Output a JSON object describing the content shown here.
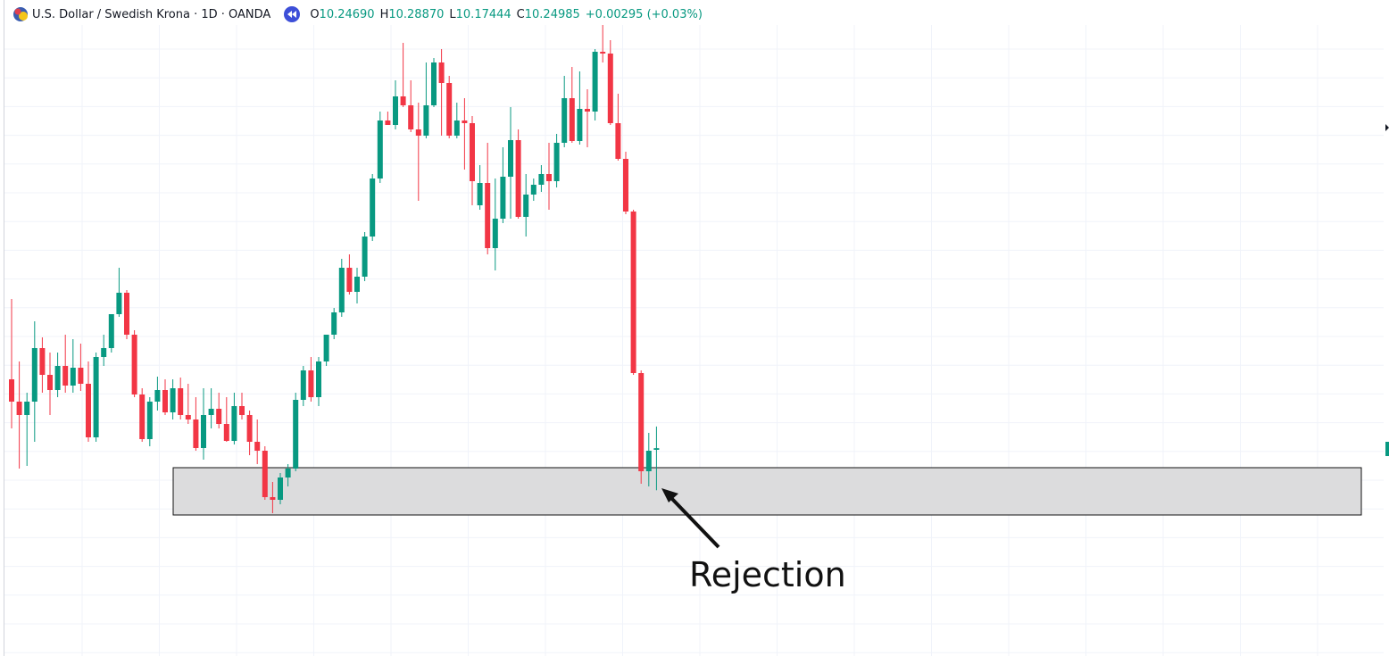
{
  "chart_data": {
    "type": "candlestick",
    "title": "U.S. Dollar / Swedish Krona · 1D · OANDA",
    "legend": [
      {
        "label": "O",
        "text": "10.24690"
      },
      {
        "label": "H",
        "text": "10.28870"
      },
      {
        "label": "L",
        "text": "10.17444"
      },
      {
        "label": "C",
        "text": "10.24985"
      }
    ],
    "change": "+0.00295 (+0.03%)",
    "annotation": "Rejection",
    "up_color": "#089981",
    "down_color": "#f23645",
    "ylim": [
      9.8773,
      11.0533
    ],
    "open": [
      10.3733,
      10.3333,
      10.3093,
      10.3333,
      10.4293,
      10.3813,
      10.3541,
      10.3973,
      10.3621,
      10.3941,
      10.3653,
      10.2693,
      10.4133,
      10.4293,
      10.4901,
      10.5285,
      10.4533,
      10.3461,
      10.2661,
      10.3333,
      10.3541,
      10.3141,
      10.3573,
      10.3093,
      10.3013,
      10.2501,
      10.3093,
      10.3205,
      10.2933,
      10.2629,
      10.3253,
      10.3093,
      10.2613,
      10.2453,
      10.1621,
      10.1573,
      10.1973,
      10.2133,
      10.3365,
      10.3893,
      10.3413,
      10.4053,
      10.4533,
      10.4933,
      10.5733,
      10.5301,
      10.5573,
      10.6293,
      10.7333,
      10.8373,
      10.8293,
      10.8805,
      10.8645,
      10.8213,
      10.8101,
      10.8645,
      10.9413,
      10.9045,
      10.8101,
      10.8373,
      10.8325,
      10.6853,
      10.7253,
      10.6085,
      10.6613,
      10.7365,
      10.8021,
      10.6645,
      10.7045,
      10.7221,
      10.7413,
      10.7285,
      10.7973,
      10.8773,
      10.8005,
      10.8581,
      10.8533,
      10.9605,
      10.9573,
      10.8325,
      10.7685,
      10.6741,
      10.3845,
      10.2085,
      10.2469
    ],
    "high": [
      10.5173,
      10.4053,
      10.3493,
      10.4773,
      10.4485,
      10.4213,
      10.4213,
      10.4533,
      10.4453,
      10.4373,
      10.4053,
      10.4213,
      10.4533,
      10.4853,
      10.5733,
      10.5333,
      10.4613,
      10.3573,
      10.3413,
      10.3781,
      10.3733,
      10.3733,
      10.3765,
      10.3653,
      10.3413,
      10.3573,
      10.3573,
      10.3493,
      10.3413,
      10.3493,
      10.3493,
      10.3173,
      10.3013,
      10.2533,
      10.1893,
      10.2053,
      10.2213,
      10.3493,
      10.3973,
      10.4133,
      10.4133,
      10.4533,
      10.5013,
      10.5893,
      10.5973,
      10.5733,
      10.6373,
      10.7413,
      10.8533,
      10.8533,
      10.9093,
      10.9765,
      10.9093,
      10.8693,
      10.9413,
      10.9493,
      10.9653,
      10.9173,
      10.8693,
      10.8773,
      10.8453,
      10.7573,
      10.7973,
      10.7333,
      10.7893,
      10.8613,
      10.8213,
      10.7413,
      10.7333,
      10.7573,
      10.7973,
      10.8133,
      10.9173,
      10.9333,
      10.9253,
      10.8933,
      10.9653,
      11.0085,
      10.9813,
      10.8853,
      10.7813,
      10.6773,
      10.3893,
      10.2773,
      10.2887
    ],
    "low": [
      10.2853,
      10.2133,
      10.2181,
      10.2613,
      10.3493,
      10.3093,
      10.3413,
      10.3493,
      10.3493,
      10.3525,
      10.2613,
      10.2613,
      10.3973,
      10.4213,
      10.4853,
      10.4453,
      10.3413,
      10.2613,
      10.2533,
      10.3173,
      10.3093,
      10.3013,
      10.3013,
      10.2933,
      10.2453,
      10.2293,
      10.2853,
      10.2853,
      10.2613,
      10.2565,
      10.3013,
      10.2373,
      10.2213,
      10.1573,
      10.1333,
      10.1493,
      10.1813,
      10.2085,
      10.3253,
      10.3333,
      10.3253,
      10.3973,
      10.4453,
      10.4853,
      10.5253,
      10.5093,
      10.5493,
      10.6213,
      10.7253,
      10.8293,
      10.8213,
      10.8613,
      10.8165,
      10.6933,
      10.8053,
      10.8613,
      10.8101,
      10.8053,
      10.8053,
      10.7493,
      10.6853,
      10.6773,
      10.5973,
      10.5685,
      10.6533,
      10.6613,
      10.6613,
      10.6293,
      10.6933,
      10.7093,
      10.6773,
      10.7173,
      10.7893,
      10.7973,
      10.7941,
      10.7893,
      10.8373,
      10.9413,
      10.8293,
      10.7653,
      10.6693,
      10.3813,
      10.1861,
      10.1813,
      10.17444
    ],
    "close": [
      10.3333,
      10.3093,
      10.3333,
      10.4293,
      10.3813,
      10.3541,
      10.3973,
      10.3621,
      10.3941,
      10.3653,
      10.2693,
      10.4133,
      10.4293,
      10.4901,
      10.5285,
      10.4533,
      10.3461,
      10.2661,
      10.3333,
      10.3541,
      10.3141,
      10.3573,
      10.3093,
      10.3013,
      10.2501,
      10.3093,
      10.3205,
      10.2933,
      10.2629,
      10.3253,
      10.3093,
      10.2613,
      10.2453,
      10.1621,
      10.1573,
      10.1973,
      10.2133,
      10.3365,
      10.3893,
      10.3413,
      10.4053,
      10.4533,
      10.4933,
      10.5733,
      10.5301,
      10.5573,
      10.6293,
      10.7333,
      10.8373,
      10.8293,
      10.8805,
      10.8645,
      10.8213,
      10.8101,
      10.8645,
      10.9413,
      10.9045,
      10.8101,
      10.8373,
      10.8325,
      10.7285,
      10.7253,
      10.6085,
      10.6613,
      10.7365,
      10.8021,
      10.6645,
      10.7045,
      10.7221,
      10.7413,
      10.7285,
      10.7973,
      10.8773,
      10.8005,
      10.8581,
      10.8533,
      10.9605,
      10.9573,
      10.8325,
      10.7685,
      10.6741,
      10.3845,
      10.2085,
      10.2453,
      10.24985
    ]
  }
}
